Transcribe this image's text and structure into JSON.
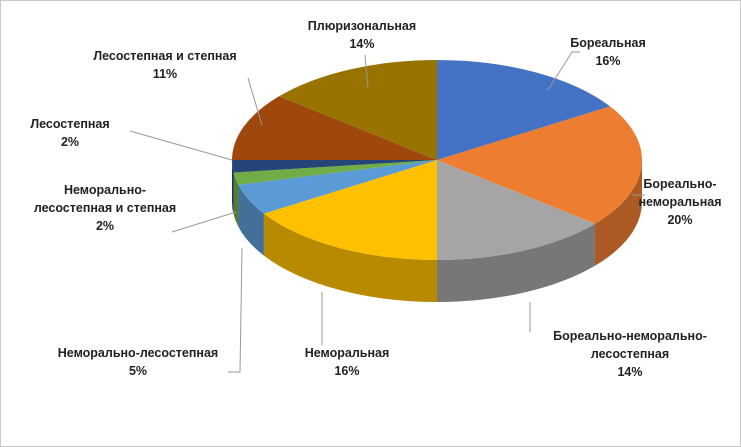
{
  "chart_data": {
    "type": "pie3d",
    "categories": [
      "Бореальная",
      "Бореально-неморальная",
      "Бореально-неморально-лесостепная",
      "Неморальная",
      "Неморально-лесостепная",
      "Неморально-лесостепная и степная",
      "Лесостепная",
      "Лесостепная и степная",
      "Плюризональная"
    ],
    "values": [
      16,
      20,
      14,
      16,
      5,
      2,
      2,
      11,
      14
    ],
    "value_labels": [
      "16%",
      "20%",
      "14%",
      "16%",
      "5%",
      "2%",
      "2%",
      "11%",
      "14%"
    ],
    "colors": [
      "#4472c4",
      "#ed7d31",
      "#a5a5a5",
      "#ffc000",
      "#5b9bd5",
      "#70ad47",
      "#264478",
      "#9e480e",
      "#997300"
    ]
  }
}
